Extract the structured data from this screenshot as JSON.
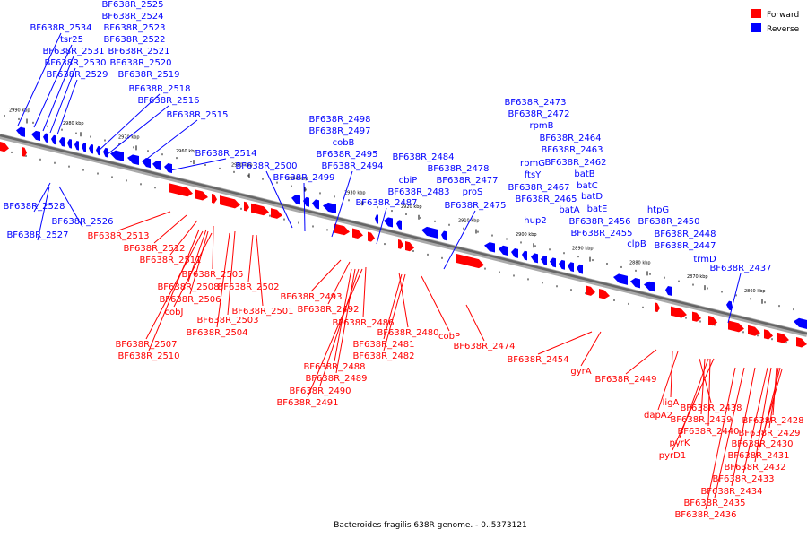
{
  "caption": "Bacteroides fragilis 638R genome. - 0..5373121",
  "legend": [
    {
      "label": "Forward",
      "color": "#ff0000"
    },
    {
      "label": "Reverse",
      "color": "#0000ff"
    }
  ],
  "colors": {
    "forward": "#ff0000",
    "reverse": "#0000ff",
    "backbone": "#666666"
  },
  "ticks": [
    "2990 kbp",
    "2980 kbp",
    "2970 kbp",
    "2960 kbp",
    "2950 kbp",
    "2940 kbp",
    "2930 kbp",
    "2920 kbp",
    "2910 kbp",
    "2900 kbp",
    "2890 kbp",
    "2880 kbp",
    "2870 kbp",
    "2860 kbp"
  ],
  "reverse_labels": [
    "BF638R_2525",
    "BF638R_2524",
    "BF638R_2534",
    "BF638R_2523",
    "tsr25",
    "BF638R_2522",
    "BF638R_2531",
    "BF638R_2521",
    "BF638R_2530",
    "BF638R_2520",
    "BF638R_2529",
    "BF638R_2519",
    "BF638R_2518",
    "BF638R_2516",
    "BF638R_2515",
    "BF638R_2514",
    "BF638R_2500",
    "BF638R_2499",
    "BF638R_2528",
    "BF638R_2526",
    "BF638R_2527",
    "BF638R_2498",
    "BF638R_2497",
    "cobB",
    "BF638R_2495",
    "BF638R_2494",
    "BF638R_2484",
    "cbiP",
    "BF638R_2478",
    "BF638R_2477",
    "BF638R_2483",
    "proS",
    "BF638R_2487",
    "BF638R_2475",
    "BF638R_2473",
    "BF638R_2472",
    "rpmB",
    "BF638R_2464",
    "BF638R_2463",
    "rpmG",
    "BF638R_2462",
    "ftsY",
    "batB",
    "BF638R_2467",
    "batC",
    "BF638R_2465",
    "batD",
    "batA",
    "batE",
    "hup2",
    "BF638R_2456",
    "BF638R_2455",
    "htpG",
    "BF638R_2450",
    "BF638R_2448",
    "clpB",
    "BF638R_2447",
    "trmD",
    "BF638R_2437"
  ],
  "forward_labels": [
    "BF638R_2513",
    "BF638R_2512",
    "BF638R_2511",
    "BF638R_2505",
    "BF638R_2508",
    "BF638R_2502",
    "BF638R_2506",
    "cobJ",
    "BF638R_2501",
    "BF638R_2503",
    "BF638R_2504",
    "BF638R_2507",
    "BF638R_2510",
    "BF638R_2493",
    "BF638R_2492",
    "BF638R_2486",
    "BF638R_2480",
    "BF638R_2481",
    "BF638R_2482",
    "BF638R_2488",
    "BF638R_2489",
    "BF638R_2490",
    "BF638R_2491",
    "cobP",
    "BF638R_2474",
    "BF638R_2454",
    "gyrA",
    "BF638R_2449",
    "ligA",
    "dapA2",
    "BF638R_2438",
    "BF638R_2439",
    "BF638R_2440",
    "pyrK",
    "pyrD1",
    "BF638R_2428",
    "BF638R_2429",
    "BF638R_2430",
    "BF638R_2431",
    "BF638R_2432",
    "BF638R_2433",
    "BF638R_2434",
    "BF638R_2435",
    "BF638R_2436"
  ]
}
